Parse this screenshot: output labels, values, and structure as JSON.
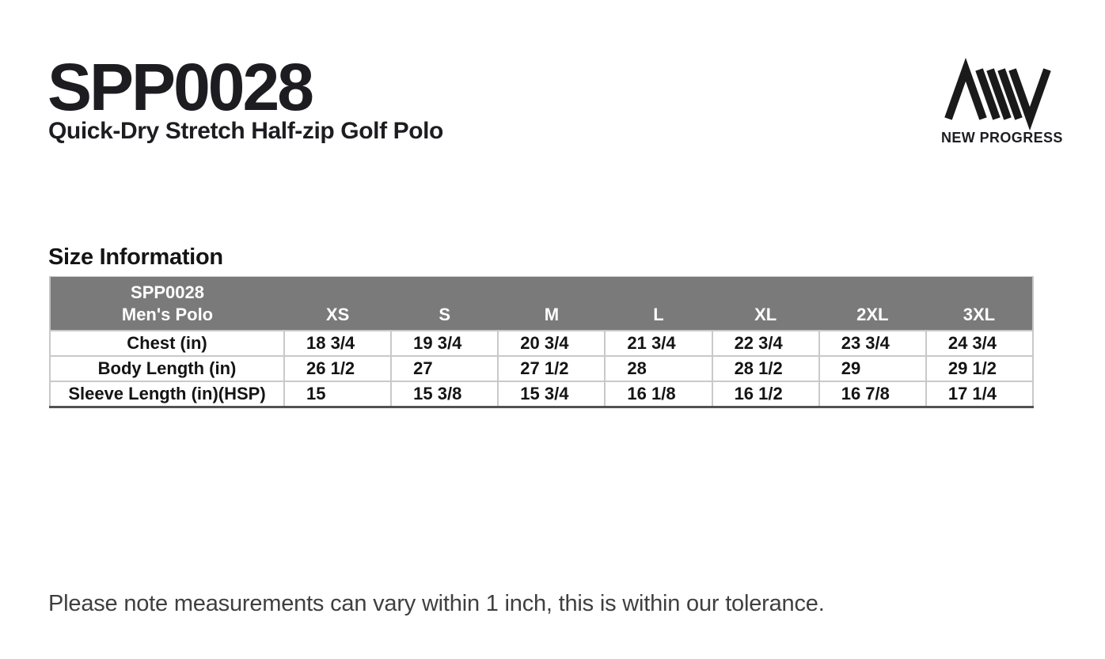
{
  "product": {
    "code": "SPP0028",
    "name": "Quick-Dry Stretch Half-zip Golf Polo"
  },
  "brand": {
    "name": "NEW PROGRESS",
    "logo_color": "#1a1a1a"
  },
  "section": {
    "title": "Size Information"
  },
  "size_table": {
    "header": {
      "line1": "SPP0028",
      "line2": "Men's Polo"
    },
    "sizes": [
      "XS",
      "S",
      "M",
      "L",
      "XL",
      "2XL",
      "3XL"
    ],
    "rows": [
      {
        "label": "Chest (in)",
        "values": [
          "18 3/4",
          "19 3/4",
          "20 3/4",
          "21 3/4",
          "22 3/4",
          "23 3/4",
          "24 3/4"
        ]
      },
      {
        "label": "Body Length (in)",
        "values": [
          "26 1/2",
          "27",
          "27 1/2",
          "28",
          "28 1/2",
          "29",
          "29 1/2"
        ]
      },
      {
        "label": "Sleeve Length (in)(HSP)",
        "values": [
          "15",
          "15 3/8",
          "15 3/4",
          "16 1/8",
          "16 1/2",
          "16 7/8",
          "17 1/4"
        ]
      }
    ],
    "colors": {
      "header_bg": "#7a7a7a",
      "header_text": "#ffffff",
      "border_light": "#c9c9c9",
      "border_dark": "#525252"
    }
  },
  "footer": {
    "note": "Please note measurements can vary within 1 inch, this is within our tolerance."
  }
}
